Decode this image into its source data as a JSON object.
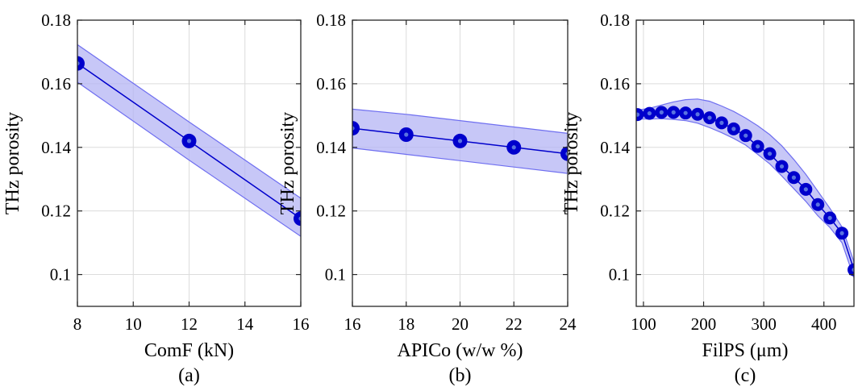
{
  "colors": {
    "marker": "#0000CC",
    "marker_inner": "#5a73e0",
    "band_fill": "#b4b4f4",
    "band_edge": "#6f6ff0",
    "grid": "#dcdcdc"
  },
  "chart_data": [
    {
      "type": "line",
      "panel_label": "(a)",
      "xlabel": "ComF (kN)",
      "ylabel": "THz porosity",
      "xlim": [
        8,
        16
      ],
      "ylim": [
        0.09,
        0.18
      ],
      "xticks": [
        8,
        10,
        12,
        14,
        16
      ],
      "xtick_labels": [
        "8",
        "10",
        "12",
        "14",
        "16"
      ],
      "yticks": [
        0.1,
        0.12,
        0.14,
        0.16,
        0.18
      ],
      "ytick_labels": [
        "0.1",
        "0.12",
        "0.14",
        "0.16",
        "0.18"
      ],
      "grid": true,
      "x": [
        8,
        12,
        16
      ],
      "y": [
        0.1664,
        0.142,
        0.1176
      ],
      "band_upper": [
        0.1723,
        0.148,
        0.124
      ],
      "band_lower": [
        0.1605,
        0.136,
        0.112
      ]
    },
    {
      "type": "line",
      "panel_label": "(b)",
      "xlabel": "APICo (w/w %)",
      "ylabel": "THz porosity",
      "xlim": [
        16,
        24
      ],
      "ylim": [
        0.09,
        0.18
      ],
      "xticks": [
        16,
        18,
        20,
        22,
        24
      ],
      "xtick_labels": [
        "16",
        "18",
        "20",
        "22",
        "24"
      ],
      "yticks": [
        0.1,
        0.12,
        0.14,
        0.16,
        0.18
      ],
      "ytick_labels": [
        "0.1",
        "0.12",
        "0.14",
        "0.16",
        "0.18"
      ],
      "grid": true,
      "x": [
        16,
        18,
        20,
        22,
        24
      ],
      "y": [
        0.146,
        0.144,
        0.142,
        0.14,
        0.138
      ],
      "band_upper": [
        0.152,
        0.1504,
        0.1484,
        0.1464,
        0.1444
      ],
      "band_lower": [
        0.1398,
        0.1378,
        0.1358,
        0.1338,
        0.1318
      ]
    },
    {
      "type": "line",
      "panel_label": "(c)",
      "xlabel": "FilPS (μm)",
      "ylabel": "THz porosity",
      "xlim": [
        88,
        450
      ],
      "ylim": [
        0.09,
        0.18
      ],
      "xticks": [
        100,
        200,
        300,
        400
      ],
      "xtick_labels": [
        "100",
        "200",
        "300",
        "400"
      ],
      "yticks": [
        0.1,
        0.12,
        0.14,
        0.16,
        0.18
      ],
      "ytick_labels": [
        "0.1",
        "0.12",
        "0.14",
        "0.16",
        "0.18"
      ],
      "grid": true,
      "x": [
        90,
        110,
        130,
        150,
        170,
        190,
        210,
        230,
        250,
        270,
        290,
        310,
        330,
        350,
        370,
        390,
        410,
        430,
        450
      ],
      "y": [
        0.1503,
        0.1507,
        0.151,
        0.151,
        0.1508,
        0.1504,
        0.1493,
        0.1477,
        0.1458,
        0.1437,
        0.1403,
        0.138,
        0.134,
        0.1305,
        0.1268,
        0.122,
        0.1178,
        0.113,
        0.1015
      ],
      "band_upper": [
        0.1517,
        0.1523,
        0.1533,
        0.1543,
        0.155,
        0.1552,
        0.1545,
        0.153,
        0.1513,
        0.1492,
        0.1468,
        0.144,
        0.1405,
        0.1362,
        0.1315,
        0.1262,
        0.1208,
        0.115,
        0.104
      ],
      "band_lower": [
        0.1489,
        0.1489,
        0.149,
        0.1488,
        0.1484,
        0.1476,
        0.1462,
        0.1446,
        0.1428,
        0.1407,
        0.1378,
        0.1348,
        0.131,
        0.127,
        0.123,
        0.1185,
        0.1148,
        0.11,
        0.099
      ]
    }
  ]
}
